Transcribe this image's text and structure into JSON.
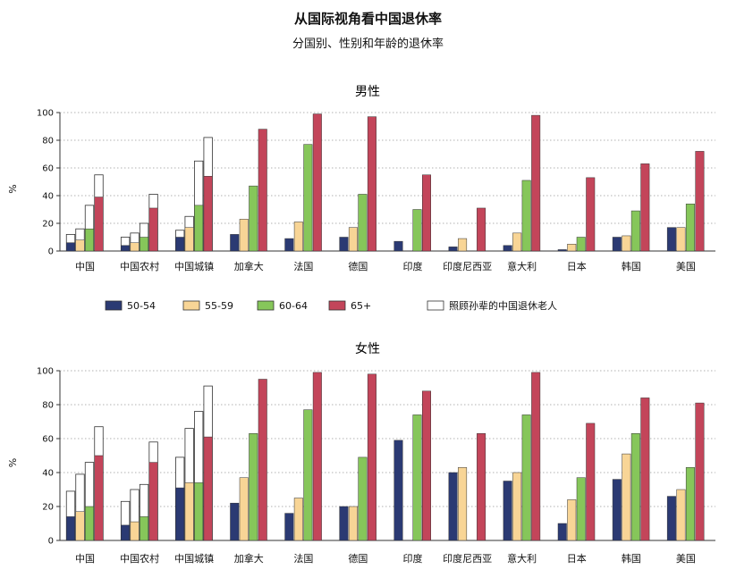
{
  "title": "从国际视角看中国退休率",
  "subtitle": "分国别、性别和年龄的退休率",
  "colors": {
    "50-54": "#2b3a73",
    "55-59": "#f8d596",
    "60-64": "#86c65a",
    "65+": "#c3455a",
    "grandchild": "#ffffff",
    "outline": "#333333",
    "grid": "#999999"
  },
  "legend": {
    "items": [
      {
        "key": "50-54",
        "label": "50-54"
      },
      {
        "key": "55-59",
        "label": "55-59"
      },
      {
        "key": "60-64",
        "label": "60-64"
      },
      {
        "key": "65+",
        "label": "65+"
      },
      {
        "key": "grandchild",
        "label": "照顾孙辈的中国退休老人"
      }
    ]
  },
  "chart_data": [
    {
      "type": "bar",
      "title": "男性",
      "ylabel": "%",
      "ylim": [
        0,
        100
      ],
      "yticks": [
        0,
        20,
        40,
        60,
        80,
        100
      ],
      "grid": true,
      "categories": [
        "中国",
        "中国农村",
        "中国城镇",
        "加拿大",
        "法国",
        "德国",
        "印度",
        "印度尼西亚",
        "意大利",
        "日本",
        "韩国",
        "美国"
      ],
      "series": [
        {
          "name": "50-54",
          "values": [
            6,
            4,
            10,
            12,
            9,
            10,
            7,
            3,
            4,
            1,
            10,
            17
          ]
        },
        {
          "name": "55-59",
          "values": [
            8,
            6,
            17,
            23,
            21,
            17,
            0,
            9,
            13,
            5,
            11,
            17
          ]
        },
        {
          "name": "60-64",
          "values": [
            16,
            10,
            33,
            47,
            77,
            41,
            30,
            0,
            51,
            10,
            29,
            34
          ]
        },
        {
          "name": "65+",
          "values": [
            39,
            31,
            54,
            88,
            99,
            97,
            55,
            31,
            98,
            53,
            63,
            72
          ]
        }
      ],
      "grandchild_totals": [
        [
          12,
          16,
          33,
          55
        ],
        [
          10,
          13,
          20,
          41
        ],
        [
          15,
          25,
          65,
          82
        ],
        null,
        null,
        null,
        null,
        null,
        null,
        null,
        null,
        null
      ]
    },
    {
      "type": "bar",
      "title": "女性",
      "ylabel": "%",
      "ylim": [
        0,
        100
      ],
      "yticks": [
        0,
        20,
        40,
        60,
        80,
        100
      ],
      "grid": true,
      "categories": [
        "中国",
        "中国农村",
        "中国城镇",
        "加拿大",
        "法国",
        "德国",
        "印度",
        "印度尼西亚",
        "意大利",
        "日本",
        "韩国",
        "美国"
      ],
      "series": [
        {
          "name": "50-54",
          "values": [
            14,
            9,
            31,
            22,
            16,
            20,
            59,
            40,
            35,
            10,
            36,
            26
          ]
        },
        {
          "name": "55-59",
          "values": [
            17,
            11,
            34,
            37,
            25,
            20,
            0,
            43,
            40,
            24,
            51,
            30
          ]
        },
        {
          "name": "60-64",
          "values": [
            20,
            14,
            34,
            63,
            77,
            49,
            74,
            0,
            74,
            37,
            63,
            43
          ]
        },
        {
          "name": "65+",
          "values": [
            50,
            46,
            61,
            95,
            99,
            98,
            88,
            63,
            99,
            69,
            84,
            81
          ]
        }
      ],
      "grandchild_totals": [
        [
          29,
          39,
          46,
          67
        ],
        [
          23,
          30,
          33,
          58
        ],
        [
          49,
          66,
          76,
          91
        ],
        null,
        null,
        null,
        null,
        null,
        null,
        null,
        null,
        null
      ]
    }
  ]
}
